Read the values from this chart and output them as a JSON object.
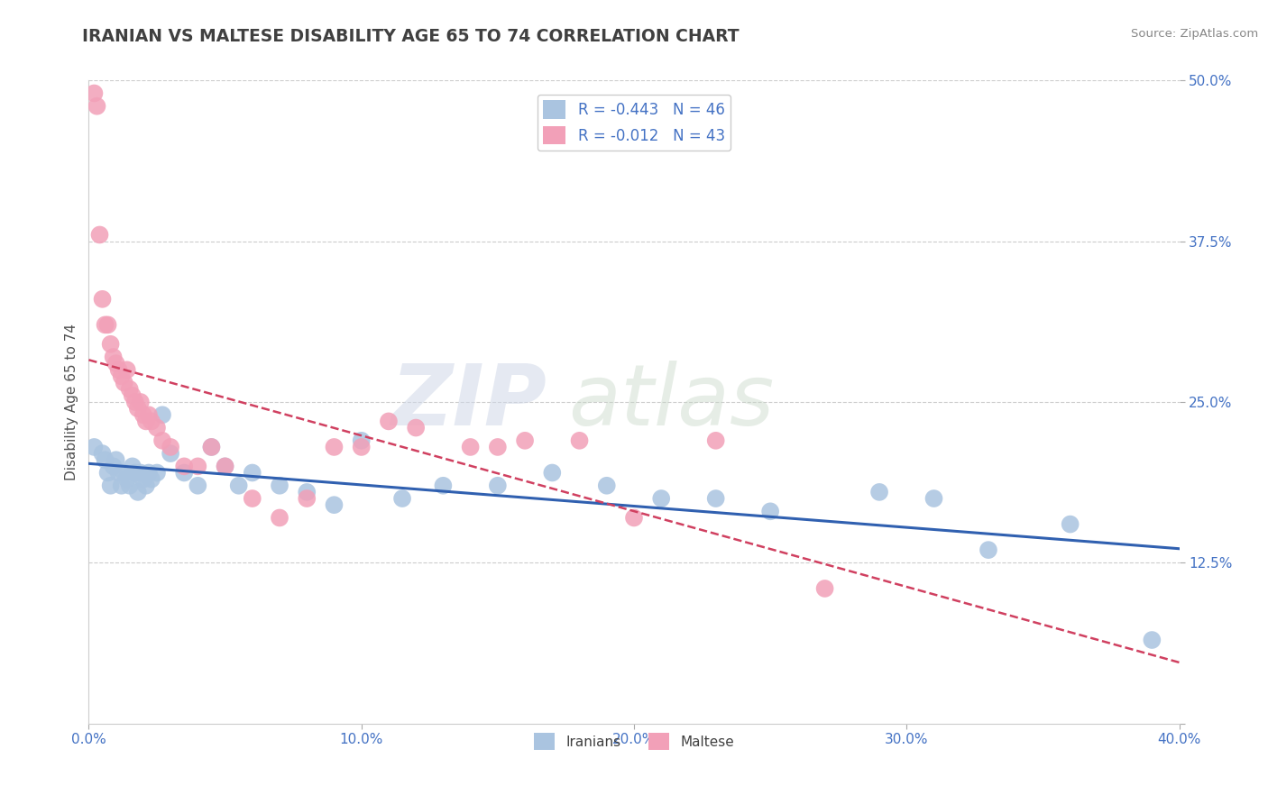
{
  "title": "IRANIAN VS MALTESE DISABILITY AGE 65 TO 74 CORRELATION CHART",
  "source": "Source: ZipAtlas.com",
  "ylabel": "Disability Age 65 to 74",
  "xlim": [
    0.0,
    0.4
  ],
  "ylim": [
    0.0,
    0.5
  ],
  "xticks": [
    0.0,
    0.1,
    0.2,
    0.3,
    0.4
  ],
  "xtick_labels": [
    "0.0%",
    "10.0%",
    "20.0%",
    "30.0%",
    "40.0%"
  ],
  "yticks": [
    0.0,
    0.125,
    0.25,
    0.375,
    0.5
  ],
  "ytick_labels": [
    "",
    "12.5%",
    "25.0%",
    "37.5%",
    "50.0%"
  ],
  "iranian_R": -0.443,
  "iranian_N": 46,
  "maltese_R": -0.012,
  "maltese_N": 43,
  "iranian_color": "#aac4e0",
  "maltese_color": "#f2a0b8",
  "iranian_line_color": "#3060b0",
  "maltese_line_color": "#d04060",
  "background_color": "#ffffff",
  "grid_color": "#cccccc",
  "title_color": "#404040",
  "iranians_x": [
    0.002,
    0.005,
    0.006,
    0.007,
    0.008,
    0.009,
    0.01,
    0.011,
    0.012,
    0.013,
    0.014,
    0.015,
    0.016,
    0.017,
    0.018,
    0.019,
    0.02,
    0.021,
    0.022,
    0.023,
    0.025,
    0.027,
    0.03,
    0.035,
    0.04,
    0.045,
    0.05,
    0.055,
    0.06,
    0.07,
    0.08,
    0.09,
    0.1,
    0.115,
    0.13,
    0.15,
    0.17,
    0.19,
    0.21,
    0.23,
    0.25,
    0.29,
    0.31,
    0.33,
    0.36,
    0.39
  ],
  "iranians_y": [
    0.215,
    0.21,
    0.205,
    0.195,
    0.185,
    0.2,
    0.205,
    0.195,
    0.185,
    0.195,
    0.19,
    0.185,
    0.2,
    0.195,
    0.18,
    0.195,
    0.19,
    0.185,
    0.195,
    0.19,
    0.195,
    0.24,
    0.21,
    0.195,
    0.185,
    0.215,
    0.2,
    0.185,
    0.195,
    0.185,
    0.18,
    0.17,
    0.22,
    0.175,
    0.185,
    0.185,
    0.195,
    0.185,
    0.175,
    0.175,
    0.165,
    0.18,
    0.175,
    0.135,
    0.155,
    0.065
  ],
  "maltese_x": [
    0.002,
    0.003,
    0.004,
    0.005,
    0.006,
    0.007,
    0.008,
    0.009,
    0.01,
    0.011,
    0.012,
    0.013,
    0.014,
    0.015,
    0.016,
    0.017,
    0.018,
    0.019,
    0.02,
    0.021,
    0.022,
    0.023,
    0.025,
    0.027,
    0.03,
    0.035,
    0.04,
    0.045,
    0.05,
    0.06,
    0.07,
    0.08,
    0.09,
    0.1,
    0.11,
    0.12,
    0.14,
    0.15,
    0.16,
    0.18,
    0.2,
    0.23,
    0.27
  ],
  "maltese_y": [
    0.49,
    0.48,
    0.38,
    0.33,
    0.31,
    0.31,
    0.295,
    0.285,
    0.28,
    0.275,
    0.27,
    0.265,
    0.275,
    0.26,
    0.255,
    0.25,
    0.245,
    0.25,
    0.24,
    0.235,
    0.24,
    0.235,
    0.23,
    0.22,
    0.215,
    0.2,
    0.2,
    0.215,
    0.2,
    0.175,
    0.16,
    0.175,
    0.215,
    0.215,
    0.235,
    0.23,
    0.215,
    0.215,
    0.22,
    0.22,
    0.16,
    0.22,
    0.105
  ]
}
